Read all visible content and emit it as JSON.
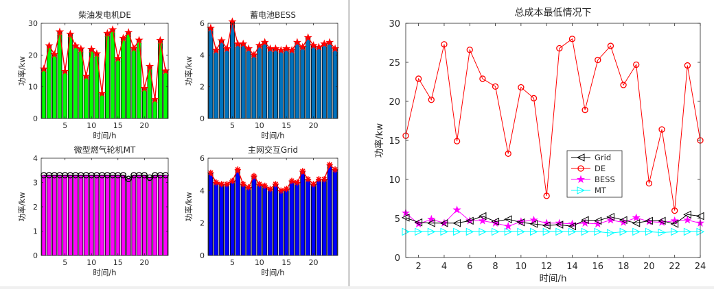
{
  "chart_data": [
    {
      "type": "bar",
      "title": "柴油发电机DE",
      "xlabel": "时间/h",
      "ylabel": "功率/kw",
      "xlim": [
        0.5,
        24.5
      ],
      "ylim": [
        0,
        30
      ],
      "xticks": [
        5,
        10,
        15,
        20
      ],
      "yticks": [
        0,
        10,
        20,
        30
      ],
      "bar_color": "#00ff00",
      "marker": "pentagram",
      "line_color": "#ff0000",
      "x": [
        1,
        2,
        3,
        4,
        5,
        6,
        7,
        8,
        9,
        10,
        11,
        12,
        13,
        14,
        15,
        16,
        17,
        18,
        19,
        20,
        21,
        22,
        23,
        24
      ],
      "values": [
        15.6,
        22.9,
        20.2,
        27.3,
        14.9,
        26.6,
        22.9,
        21.9,
        13.3,
        21.8,
        20.4,
        7.9,
        26.8,
        28.0,
        18.9,
        25.3,
        27.1,
        22.1,
        24.7,
        9.5,
        16.4,
        6.0,
        24.6,
        15.0
      ]
    },
    {
      "type": "bar",
      "title": "蓄电池BESS",
      "xlabel": "时间/h",
      "ylabel": "功率/kw",
      "xlim": [
        0.5,
        24.5
      ],
      "ylim": [
        0,
        6
      ],
      "xticks": [
        5,
        10,
        15,
        20
      ],
      "yticks": [
        0,
        2,
        4,
        6
      ],
      "bar_color": "#0072bd",
      "marker": "pentagram",
      "line_color": "#ff0000",
      "x": [
        1,
        2,
        3,
        4,
        5,
        6,
        7,
        8,
        9,
        10,
        11,
        12,
        13,
        14,
        15,
        16,
        17,
        18,
        19,
        20,
        21,
        22,
        23,
        24
      ],
      "values": [
        5.7,
        4.3,
        4.9,
        4.4,
        6.1,
        4.7,
        4.7,
        4.4,
        4.0,
        4.6,
        4.8,
        4.4,
        4.4,
        4.3,
        4.4,
        4.3,
        4.8,
        4.5,
        5.1,
        4.6,
        4.5,
        4.7,
        4.8,
        4.4
      ]
    },
    {
      "type": "bar",
      "title": "微型燃气轮机MT",
      "xlabel": "时间/h",
      "ylabel": "功率/kw",
      "xlim": [
        0.5,
        24.5
      ],
      "ylim": [
        0,
        4
      ],
      "xticks": [
        5,
        10,
        15,
        20
      ],
      "yticks": [
        0,
        1,
        2,
        3,
        4
      ],
      "bar_color": "#ff00ff",
      "marker": "circle",
      "line_color": "#000000",
      "x": [
        1,
        2,
        3,
        4,
        5,
        6,
        7,
        8,
        9,
        10,
        11,
        12,
        13,
        14,
        15,
        16,
        17,
        18,
        19,
        20,
        21,
        22,
        23,
        24
      ],
      "values": [
        3.3,
        3.3,
        3.3,
        3.3,
        3.3,
        3.3,
        3.3,
        3.3,
        3.3,
        3.3,
        3.3,
        3.3,
        3.3,
        3.3,
        3.3,
        3.3,
        3.15,
        3.3,
        3.3,
        3.3,
        3.2,
        3.3,
        3.3,
        3.3
      ]
    },
    {
      "type": "bar",
      "title": "主网交互Grid",
      "xlabel": "时间/h",
      "ylabel": "功率/kw",
      "xlim": [
        0.5,
        24.5
      ],
      "ylim": [
        0,
        6
      ],
      "xticks": [
        5,
        10,
        15,
        20
      ],
      "yticks": [
        0,
        2,
        4,
        6
      ],
      "bar_color": "#0000ff",
      "marker": "asterisk",
      "line_color": "#ff0000",
      "x": [
        1,
        2,
        3,
        4,
        5,
        6,
        7,
        8,
        9,
        10,
        11,
        12,
        13,
        14,
        15,
        16,
        17,
        18,
        19,
        20,
        21,
        22,
        23,
        24
      ],
      "values": [
        5.1,
        4.5,
        4.4,
        4.4,
        4.6,
        5.3,
        4.4,
        4.2,
        4.9,
        4.4,
        4.3,
        4.1,
        4.4,
        4.0,
        4.1,
        4.6,
        4.5,
        5.2,
        4.7,
        4.4,
        4.7,
        4.7,
        5.6,
        5.3
      ]
    },
    {
      "type": "line",
      "title": "总成本最低情况下",
      "xlabel": "时间/h",
      "ylabel": "功率/kw",
      "xlim": [
        1,
        24
      ],
      "ylim": [
        0,
        30
      ],
      "xticks": [
        2,
        4,
        6,
        8,
        10,
        12,
        14,
        16,
        18,
        20,
        22,
        24
      ],
      "yticks": [
        0,
        5,
        10,
        15,
        20,
        25,
        30
      ],
      "legend_position": "center",
      "x": [
        1,
        2,
        3,
        4,
        5,
        6,
        7,
        8,
        9,
        10,
        11,
        12,
        13,
        14,
        15,
        16,
        17,
        18,
        19,
        20,
        21,
        22,
        23,
        24
      ],
      "series": [
        {
          "name": "Grid",
          "color": "#000000",
          "marker": "triangle-left",
          "values": [
            5.1,
            4.5,
            4.4,
            4.4,
            4.4,
            4.7,
            5.3,
            4.6,
            4.9,
            4.5,
            4.3,
            4.1,
            4.2,
            4.0,
            4.8,
            4.7,
            5.2,
            4.8,
            4.4,
            4.7,
            4.7,
            4.3,
            5.5,
            5.3
          ]
        },
        {
          "name": "DE",
          "color": "#ff0000",
          "marker": "circle",
          "values": [
            15.6,
            22.9,
            20.2,
            27.3,
            14.9,
            26.6,
            22.9,
            21.9,
            13.3,
            21.8,
            20.4,
            7.9,
            26.8,
            28.0,
            18.9,
            25.3,
            27.1,
            22.1,
            24.7,
            9.5,
            16.4,
            6.0,
            24.6,
            15.0
          ]
        },
        {
          "name": "BESS",
          "color": "#ff00ff",
          "marker": "pentagram",
          "values": [
            5.7,
            4.3,
            4.9,
            4.4,
            6.1,
            4.7,
            4.7,
            4.4,
            4.0,
            4.6,
            4.8,
            4.4,
            4.4,
            4.3,
            4.4,
            4.3,
            4.8,
            4.5,
            5.1,
            4.6,
            4.5,
            4.7,
            4.8,
            4.4
          ]
        },
        {
          "name": "MT",
          "color": "#00ffff",
          "marker": "triangle-right",
          "values": [
            3.3,
            3.3,
            3.3,
            3.3,
            3.3,
            3.3,
            3.3,
            3.3,
            3.3,
            3.3,
            3.3,
            3.3,
            3.3,
            3.3,
            3.3,
            3.3,
            3.15,
            3.3,
            3.3,
            3.3,
            3.2,
            3.3,
            3.3,
            3.3
          ]
        }
      ]
    }
  ]
}
